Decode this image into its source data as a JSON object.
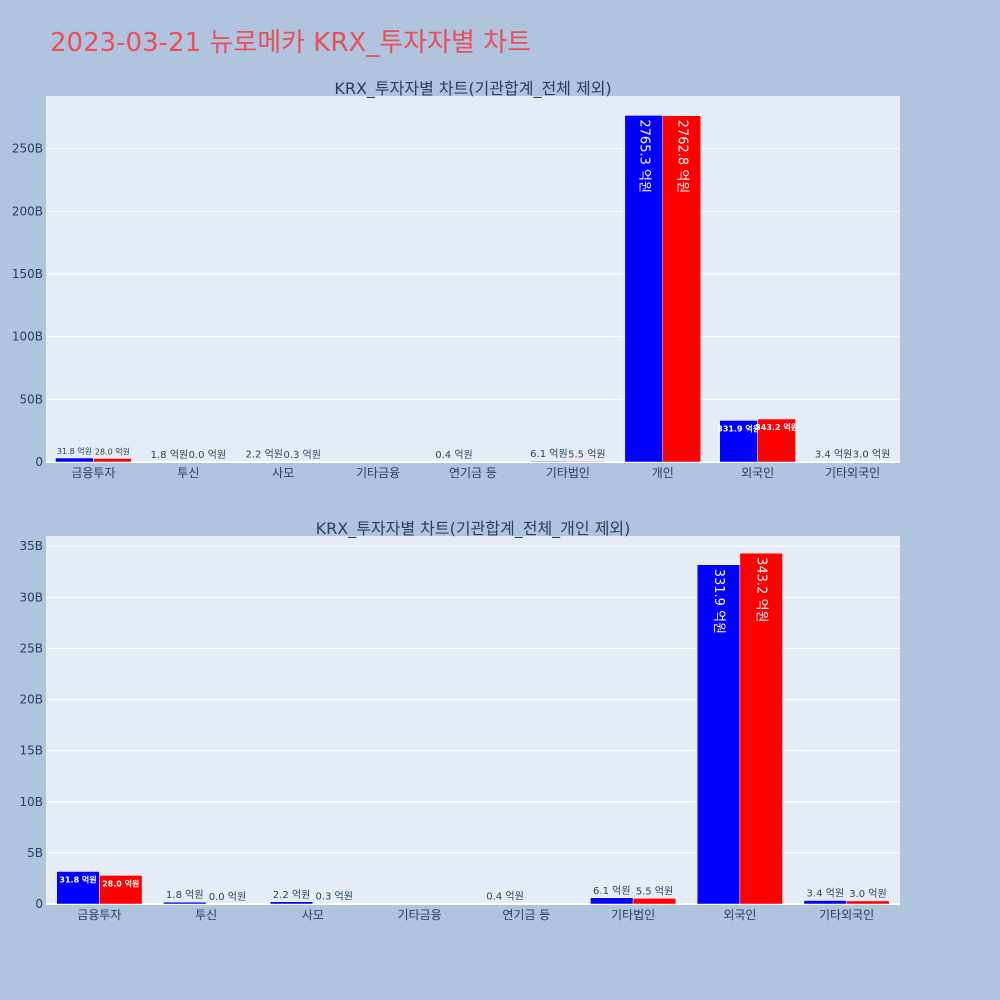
{
  "page": {
    "title": "2023-03-21 뉴로메카 KRX_투자자별 차트"
  },
  "colors": {
    "buy": "#0000ff",
    "sell": "#ff0000",
    "plot_bg": "#e5ecf6",
    "page_bg": "#b0c4de",
    "title": "#e8505b"
  },
  "chart_data": [
    {
      "type": "bar",
      "title": "KRX_투자자별 차트(기관합계_전체 제외)",
      "categories": [
        "금융투자",
        "투신",
        "사모",
        "기타금융",
        "연기금 등",
        "기타법인",
        "개인",
        "외국인",
        "기타외국인"
      ],
      "series": [
        {
          "values": [
            3.18,
            0.18,
            0.22,
            0,
            0.04,
            0.61,
            276.53,
            33.19,
            0.34
          ],
          "labels": [
            "31.8 억원",
            "1.8 억원",
            "2.2 억원",
            "",
            "0.4 억원",
            "6.1 억원",
            "2765.3 억원",
            "331.9 억원",
            "3.4 억원"
          ]
        },
        {
          "values": [
            2.8,
            0.0,
            0.03,
            0,
            0,
            0.55,
            276.28,
            34.32,
            0.3
          ],
          "labels": [
            "28.0 억원",
            "0.0 억원",
            "0.3 억원",
            "",
            "",
            "5.5 억원",
            "2762.8 억원",
            "343.2 억원",
            "3.0 억원"
          ]
        }
      ],
      "yticks": [
        "0",
        "50B",
        "100B",
        "150B",
        "200B",
        "250B"
      ],
      "ylim": [
        0,
        292
      ],
      "grid": true
    },
    {
      "type": "bar",
      "title": "KRX_투자자별 차트(기관합계_전체_개인 제외)",
      "categories": [
        "금융투자",
        "투신",
        "사모",
        "기타금융",
        "연기금 등",
        "기타법인",
        "외국인",
        "기타외국인"
      ],
      "series": [
        {
          "values": [
            3.18,
            0.18,
            0.22,
            0,
            0.04,
            0.61,
            33.19,
            0.34
          ],
          "labels": [
            "31.8 억원",
            "1.8 억원",
            "2.2 억원",
            "",
            "0.4 억원",
            "6.1 억원",
            "331.9 억원",
            "3.4 억원"
          ]
        },
        {
          "values": [
            2.8,
            0.0,
            0.03,
            0,
            0,
            0.55,
            34.32,
            0.3
          ],
          "labels": [
            "28.0 억원",
            "0.0 억원",
            "0.3 억원",
            "",
            "",
            "5.5 억원",
            "343.2 억원",
            "3.0 억원"
          ]
        }
      ],
      "yticks": [
        "0",
        "5B",
        "10B",
        "15B",
        "20B",
        "25B",
        "30B",
        "35B"
      ],
      "ylim": [
        0,
        36
      ],
      "grid": true
    }
  ]
}
